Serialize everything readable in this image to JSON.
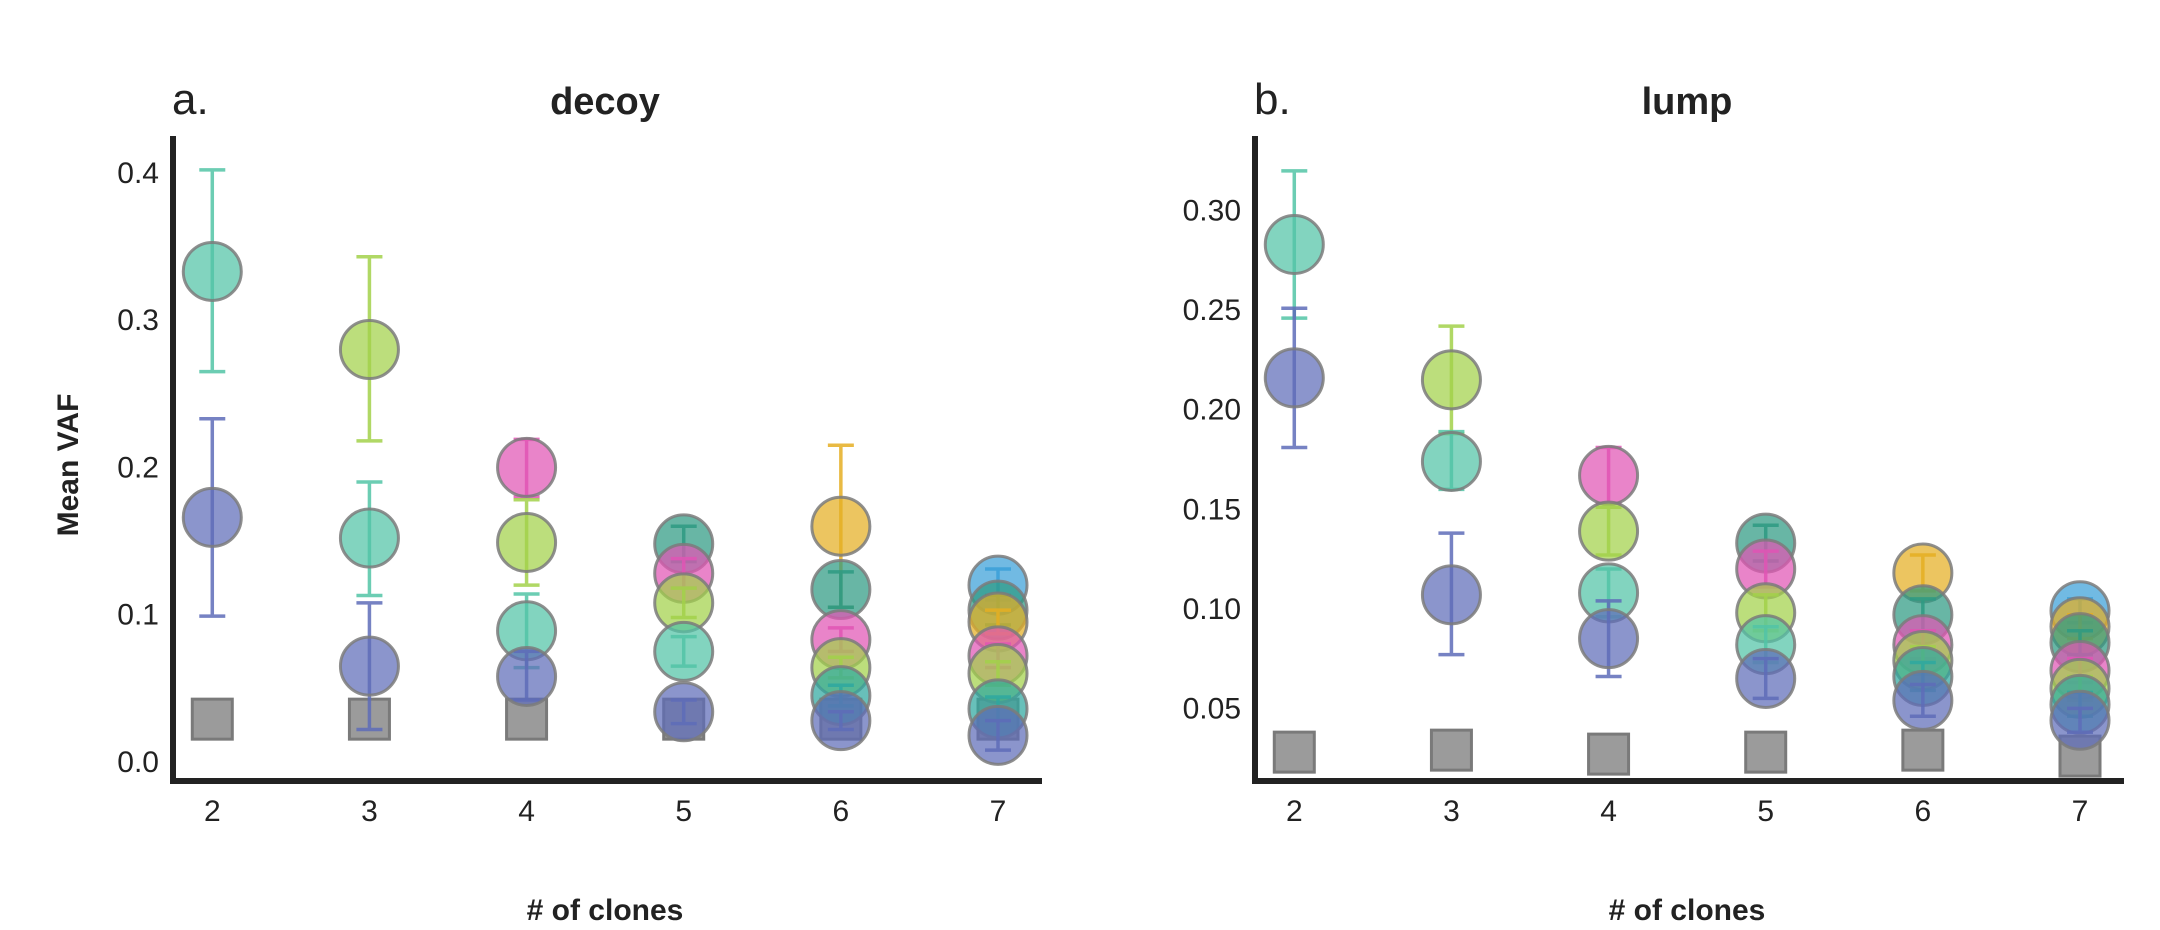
{
  "chart_data": [
    {
      "type": "scatter",
      "panel_label": "a.",
      "title": "decoy",
      "xlabel": "# of clones",
      "ylabel": "Mean VAF",
      "xlim": [
        1.75,
        7.28
      ],
      "ylim": [
        -0.013,
        0.425
      ],
      "x_ticks": [
        2,
        3,
        4,
        5,
        6,
        7
      ],
      "y_ticks": [
        0.0,
        0.1,
        0.2,
        0.3,
        0.4
      ],
      "y_tick_labels": [
        "0.0",
        "0.1",
        "0.2",
        "0.3",
        "0.4"
      ],
      "grid": false,
      "baseline_squares": [
        {
          "x": 2,
          "y": 0.029
        },
        {
          "x": 3,
          "y": 0.029
        },
        {
          "x": 4,
          "y": 0.029
        },
        {
          "x": 5,
          "y": 0.029
        },
        {
          "x": 6,
          "y": 0.029
        },
        {
          "x": 7,
          "y": 0.029
        }
      ],
      "points": [
        {
          "x": 2,
          "y": 0.333,
          "lo": 0.265,
          "hi": 0.402,
          "color": "#52c4a6"
        },
        {
          "x": 2,
          "y": 0.166,
          "lo": 0.099,
          "hi": 0.233,
          "color": "#5e6cb8"
        },
        {
          "x": 3,
          "y": 0.28,
          "lo": 0.218,
          "hi": 0.343,
          "color": "#a2d14a"
        },
        {
          "x": 3,
          "y": 0.152,
          "lo": 0.113,
          "hi": 0.19,
          "color": "#52c4a6"
        },
        {
          "x": 3,
          "y": 0.065,
          "lo": 0.022,
          "hi": 0.108,
          "color": "#5e6cb8"
        },
        {
          "x": 4,
          "y": 0.2,
          "lo": 0.18,
          "hi": 0.219,
          "color": "#e055b4"
        },
        {
          "x": 4,
          "y": 0.149,
          "lo": 0.12,
          "hi": 0.178,
          "color": "#a2d14a"
        },
        {
          "x": 4,
          "y": 0.089,
          "lo": 0.064,
          "hi": 0.114,
          "color": "#52c4a6"
        },
        {
          "x": 4,
          "y": 0.058,
          "lo": 0.042,
          "hi": 0.075,
          "color": "#5e6cb8"
        },
        {
          "x": 5,
          "y": 0.148,
          "lo": 0.136,
          "hi": 0.16,
          "color": "#2e9a82"
        },
        {
          "x": 5,
          "y": 0.128,
          "lo": 0.118,
          "hi": 0.138,
          "color": "#e055b4"
        },
        {
          "x": 5,
          "y": 0.108,
          "lo": 0.098,
          "hi": 0.118,
          "color": "#a2d14a"
        },
        {
          "x": 5,
          "y": 0.075,
          "lo": 0.065,
          "hi": 0.085,
          "color": "#52c4a6"
        },
        {
          "x": 5,
          "y": 0.034,
          "lo": 0.026,
          "hi": 0.042,
          "color": "#5e6cb8"
        },
        {
          "x": 6,
          "y": 0.16,
          "lo": 0.105,
          "hi": 0.215,
          "color": "#e5ae22"
        },
        {
          "x": 6,
          "y": 0.117,
          "lo": 0.105,
          "hi": 0.129,
          "color": "#2e9a82"
        },
        {
          "x": 6,
          "y": 0.083,
          "lo": 0.075,
          "hi": 0.091,
          "color": "#e055b4"
        },
        {
          "x": 6,
          "y": 0.064,
          "lo": 0.057,
          "hi": 0.071,
          "color": "#a2d14a"
        },
        {
          "x": 6,
          "y": 0.045,
          "lo": 0.038,
          "hi": 0.052,
          "color": "#2ea8a0"
        },
        {
          "x": 6,
          "y": 0.028,
          "lo": 0.022,
          "hi": 0.034,
          "color": "#5e6cb8"
        },
        {
          "x": 7,
          "y": 0.12,
          "lo": 0.11,
          "hi": 0.131,
          "color": "#3aa0d8"
        },
        {
          "x": 7,
          "y": 0.103,
          "lo": 0.093,
          "hi": 0.113,
          "color": "#2e9a82"
        },
        {
          "x": 7,
          "y": 0.095,
          "lo": 0.087,
          "hi": 0.103,
          "color": "#e5ae22"
        },
        {
          "x": 7,
          "y": 0.072,
          "lo": 0.064,
          "hi": 0.08,
          "color": "#e055b4"
        },
        {
          "x": 7,
          "y": 0.06,
          "lo": 0.052,
          "hi": 0.068,
          "color": "#a2d14a"
        },
        {
          "x": 7,
          "y": 0.036,
          "lo": 0.028,
          "hi": 0.044,
          "color": "#2ea8a0"
        },
        {
          "x": 7,
          "y": 0.018,
          "lo": 0.008,
          "hi": 0.028,
          "color": "#5e6cb8"
        }
      ]
    },
    {
      "type": "scatter",
      "panel_label": "b.",
      "title": "lump",
      "xlabel": "# of clones",
      "ylabel": "",
      "xlim": [
        1.75,
        7.28
      ],
      "ylim": [
        0.0135,
        0.3375
      ],
      "x_ticks": [
        2,
        3,
        4,
        5,
        6,
        7
      ],
      "y_ticks": [
        0.05,
        0.1,
        0.15,
        0.2,
        0.25,
        0.3
      ],
      "y_tick_labels": [
        "0.05",
        "0.10",
        "0.15",
        "0.20",
        "0.25",
        "0.30"
      ],
      "grid": false,
      "baseline_squares": [
        {
          "x": 2,
          "y": 0.028
        },
        {
          "x": 3,
          "y": 0.029
        },
        {
          "x": 4,
          "y": 0.027
        },
        {
          "x": 5,
          "y": 0.028
        },
        {
          "x": 6,
          "y": 0.029
        },
        {
          "x": 7,
          "y": 0.026
        }
      ],
      "points": [
        {
          "x": 2,
          "y": 0.283,
          "lo": 0.246,
          "hi": 0.32,
          "color": "#52c4a6"
        },
        {
          "x": 2,
          "y": 0.216,
          "lo": 0.181,
          "hi": 0.251,
          "color": "#5e6cb8"
        },
        {
          "x": 3,
          "y": 0.215,
          "lo": 0.188,
          "hi": 0.242,
          "color": "#a2d14a"
        },
        {
          "x": 3,
          "y": 0.174,
          "lo": 0.16,
          "hi": 0.189,
          "color": "#52c4a6"
        },
        {
          "x": 3,
          "y": 0.107,
          "lo": 0.077,
          "hi": 0.138,
          "color": "#5e6cb8"
        },
        {
          "x": 4,
          "y": 0.167,
          "lo": 0.153,
          "hi": 0.181,
          "color": "#e055b4"
        },
        {
          "x": 4,
          "y": 0.139,
          "lo": 0.127,
          "hi": 0.151,
          "color": "#a2d14a"
        },
        {
          "x": 4,
          "y": 0.108,
          "lo": 0.096,
          "hi": 0.12,
          "color": "#52c4a6"
        },
        {
          "x": 4,
          "y": 0.085,
          "lo": 0.066,
          "hi": 0.104,
          "color": "#5e6cb8"
        },
        {
          "x": 5,
          "y": 0.133,
          "lo": 0.124,
          "hi": 0.142,
          "color": "#2e9a82"
        },
        {
          "x": 5,
          "y": 0.12,
          "lo": 0.111,
          "hi": 0.129,
          "color": "#e055b4"
        },
        {
          "x": 5,
          "y": 0.098,
          "lo": 0.089,
          "hi": 0.107,
          "color": "#a2d14a"
        },
        {
          "x": 5,
          "y": 0.082,
          "lo": 0.073,
          "hi": 0.091,
          "color": "#52c4a6"
        },
        {
          "x": 5,
          "y": 0.065,
          "lo": 0.055,
          "hi": 0.075,
          "color": "#5e6cb8"
        },
        {
          "x": 6,
          "y": 0.118,
          "lo": 0.109,
          "hi": 0.127,
          "color": "#e5ae22"
        },
        {
          "x": 6,
          "y": 0.097,
          "lo": 0.089,
          "hi": 0.105,
          "color": "#2e9a82"
        },
        {
          "x": 6,
          "y": 0.082,
          "lo": 0.075,
          "hi": 0.089,
          "color": "#e055b4"
        },
        {
          "x": 6,
          "y": 0.074,
          "lo": 0.067,
          "hi": 0.081,
          "color": "#a2d14a"
        },
        {
          "x": 6,
          "y": 0.066,
          "lo": 0.059,
          "hi": 0.073,
          "color": "#2ea8a0"
        },
        {
          "x": 6,
          "y": 0.054,
          "lo": 0.046,
          "hi": 0.062,
          "color": "#5e6cb8"
        },
        {
          "x": 7,
          "y": 0.099,
          "lo": 0.093,
          "hi": 0.105,
          "color": "#3aa0d8"
        },
        {
          "x": 7,
          "y": 0.091,
          "lo": 0.085,
          "hi": 0.097,
          "color": "#e5ae22"
        },
        {
          "x": 7,
          "y": 0.083,
          "lo": 0.077,
          "hi": 0.089,
          "color": "#2e9a82"
        },
        {
          "x": 7,
          "y": 0.069,
          "lo": 0.063,
          "hi": 0.075,
          "color": "#e055b4"
        },
        {
          "x": 7,
          "y": 0.06,
          "lo": 0.054,
          "hi": 0.066,
          "color": "#a2d14a"
        },
        {
          "x": 7,
          "y": 0.052,
          "lo": 0.046,
          "hi": 0.058,
          "color": "#2ea8a0"
        },
        {
          "x": 7,
          "y": 0.044,
          "lo": 0.038,
          "hi": 0.05,
          "color": "#5e6cb8"
        }
      ]
    }
  ]
}
